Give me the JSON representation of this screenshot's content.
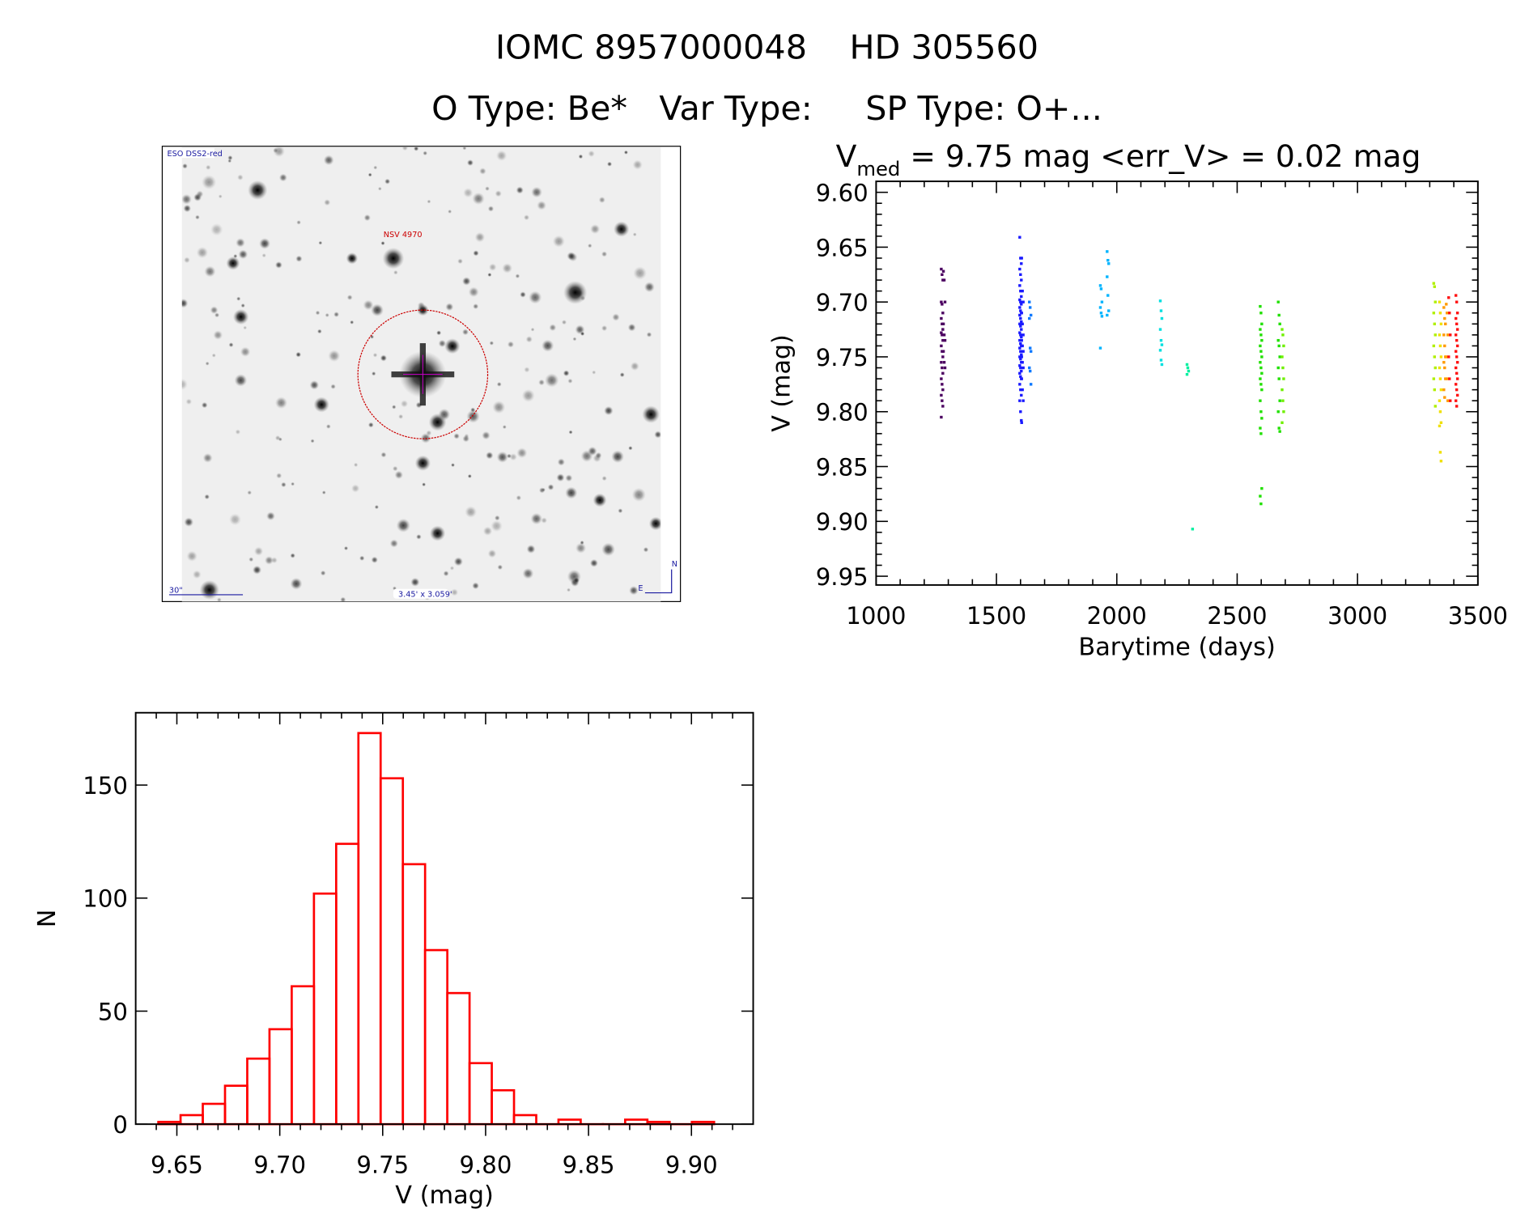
{
  "header": {
    "title_line1": "IOMC 8957000048    HD 305560",
    "title_line2": "O Type: Be*   Var Type:     SP Type: O+..."
  },
  "sky_image": {
    "survey_label": "ESO DSS2-red",
    "object_label": "NSV 4970",
    "scale_label": "30\"",
    "fov_label": "3.45' x 3.059'",
    "north_label": "N",
    "east_label": "E",
    "marker_color": "#cc0000"
  },
  "chart_data": [
    {
      "type": "scatter",
      "title_prefix": "V",
      "title_subscript": "med",
      "title_rest": " = 9.75 mag <err_V> = 0.02 mag",
      "xlabel": "Barytime (days)",
      "ylabel": "V (mag)",
      "xlim": [
        1000,
        3500
      ],
      "ylim": [
        9.95,
        9.6
      ],
      "y_inverted": true,
      "x_ticks": [
        "1000",
        "1500",
        "2000",
        "2500",
        "3000",
        "3500"
      ],
      "y_ticks": [
        "9.60",
        "9.65",
        "9.70",
        "9.75",
        "9.80",
        "9.85",
        "9.90",
        "9.95"
      ],
      "series": [
        {
          "color": "#4b0060",
          "points": [
            {
              "x": 1274,
              "y": [
                9.67,
                9.675,
                9.68,
                9.7,
                9.702,
                9.71,
                9.715,
                9.72,
                9.725,
                9.728,
                9.73,
                9.735,
                9.74,
                9.745,
                9.75,
                9.755,
                9.76,
                9.765,
                9.77,
                9.775,
                9.78,
                9.785,
                9.79,
                9.795,
                9.805
              ]
            },
            {
              "x": 1283,
              "y": [
                9.672,
                9.68,
                9.7,
                9.72,
                9.73,
                9.735,
                9.745,
                9.755,
                9.76
              ]
            }
          ]
        },
        {
          "color": "#1a1aff",
          "points": [
            {
              "x": 1600,
              "y": [
                9.641,
                9.66,
                9.665,
                9.67,
                9.675,
                9.68,
                9.685,
                9.69,
                9.695,
                9.698,
                9.7,
                9.702,
                9.705,
                9.708,
                9.71,
                9.712,
                9.715,
                9.718,
                9.72,
                9.722,
                9.725,
                9.728,
                9.73,
                9.732,
                9.735,
                9.738,
                9.74,
                9.742,
                9.745,
                9.748,
                9.75,
                9.752,
                9.755,
                9.758,
                9.76,
                9.763,
                9.765,
                9.768,
                9.77,
                9.775,
                9.78,
                9.785,
                9.79,
                9.8,
                9.808
              ]
            },
            {
              "x": 1608,
              "y": [
                9.66,
                9.69,
                9.7,
                9.71,
                9.72,
                9.73,
                9.735,
                9.74,
                9.745,
                9.75,
                9.755,
                9.76,
                9.77,
                9.78,
                9.79,
                9.81
              ]
            }
          ]
        },
        {
          "color": "#0a78ff",
          "points": [
            {
              "x": 1640,
              "y": [
                9.7,
                9.705,
                9.712,
                9.715,
                9.742,
                9.745,
                9.76,
                9.763,
                9.775
              ]
            }
          ]
        },
        {
          "color": "#00b4ff",
          "points": [
            {
              "x": 1935,
              "y": [
                9.685,
                9.688,
                9.7,
                9.705,
                9.71,
                9.713,
                9.742
              ]
            },
            {
              "x": 1963,
              "y": [
                9.654,
                9.662,
                9.665,
                9.677,
                9.694,
                9.708,
                9.712
              ]
            }
          ]
        },
        {
          "color": "#00e0e0",
          "points": [
            {
              "x": 2184,
              "y": [
                9.699,
                9.708,
                9.715,
                9.725,
                9.735,
                9.739,
                9.744,
                9.753,
                9.757
              ]
            }
          ]
        },
        {
          "color": "#00f0a0",
          "points": [
            {
              "x": 2295,
              "y": [
                9.757,
                9.76,
                9.763,
                9.766
              ]
            },
            {
              "x": 2318,
              "y": [
                9.907
              ]
            }
          ]
        },
        {
          "color": "#20e000",
          "points": [
            {
              "x": 2599,
              "y": [
                9.704,
                9.71,
                9.72,
                9.725,
                9.73,
                9.735,
                9.74,
                9.745,
                9.75,
                9.755,
                9.76,
                9.765,
                9.77,
                9.775,
                9.78,
                9.79,
                9.8,
                9.806,
                9.815,
                9.82,
                9.87,
                9.877,
                9.884
              ]
            },
            {
              "x": 2674,
              "y": [
                9.7,
                9.712,
                9.72,
                9.735,
                9.74,
                9.75,
                9.76,
                9.77,
                9.79,
                9.8,
                9.815,
                9.818
              ]
            }
          ]
        },
        {
          "color": "#70f000",
          "points": [
            {
              "x": 2690,
              "y": [
                9.725,
                9.73,
                9.74,
                9.75,
                9.76,
                9.77,
                9.78,
                9.79,
                9.8,
                9.81
              ]
            }
          ]
        },
        {
          "color": "#b0f000",
          "points": [
            {
              "x": 3320,
              "y": [
                9.683,
                9.686,
                9.7,
                9.71,
                9.72,
                9.73,
                9.74,
                9.75,
                9.76,
                9.77,
                9.78,
                9.795
              ]
            }
          ]
        },
        {
          "color": "#f0e000",
          "points": [
            {
              "x": 3344,
              "y": [
                9.7,
                9.71,
                9.72,
                9.73,
                9.74,
                9.75,
                9.76,
                9.77,
                9.78,
                9.79,
                9.8,
                9.81,
                9.813,
                9.837,
                9.845
              ]
            }
          ]
        },
        {
          "color": "#ff9a00",
          "points": [
            {
              "x": 3362,
              "y": [
                9.705,
                9.715,
                9.72,
                9.73,
                9.74,
                9.75,
                9.755,
                9.76,
                9.77,
                9.78,
                9.787
              ]
            },
            {
              "x": 3372,
              "y": [
                9.702,
                9.71,
                9.73,
                9.75,
                9.77,
                9.79
              ]
            }
          ]
        },
        {
          "color": "#ff1010",
          "points": [
            {
              "x": 3412,
              "y": [
                9.694,
                9.7,
                9.71,
                9.715,
                9.72,
                9.725,
                9.73,
                9.735,
                9.74,
                9.745,
                9.75,
                9.755,
                9.76,
                9.765,
                9.77,
                9.775,
                9.78,
                9.785,
                9.79,
                9.795
              ]
            },
            {
              "x": 3382,
              "y": [
                9.696,
                9.71,
                9.73,
                9.75,
                9.77,
                9.79
              ]
            }
          ]
        }
      ]
    },
    {
      "type": "bar",
      "subtype": "histogram",
      "xlabel": "V (mag)",
      "ylabel": "N",
      "xlim": [
        9.63,
        9.93
      ],
      "ylim": [
        0,
        182
      ],
      "bin_start": 9.641,
      "bin_width": 0.0108,
      "counts": [
        1,
        4,
        9,
        17,
        29,
        42,
        61,
        102,
        124,
        173,
        153,
        115,
        77,
        58,
        27,
        15,
        4,
        0,
        2,
        0,
        0,
        2,
        1,
        0,
        1
      ],
      "bar_color": "#ff0000",
      "x_ticks": [
        "9.65",
        "9.70",
        "9.75",
        "9.80",
        "9.85",
        "9.90"
      ],
      "y_ticks": [
        "0",
        "50",
        "100",
        "150"
      ]
    }
  ]
}
